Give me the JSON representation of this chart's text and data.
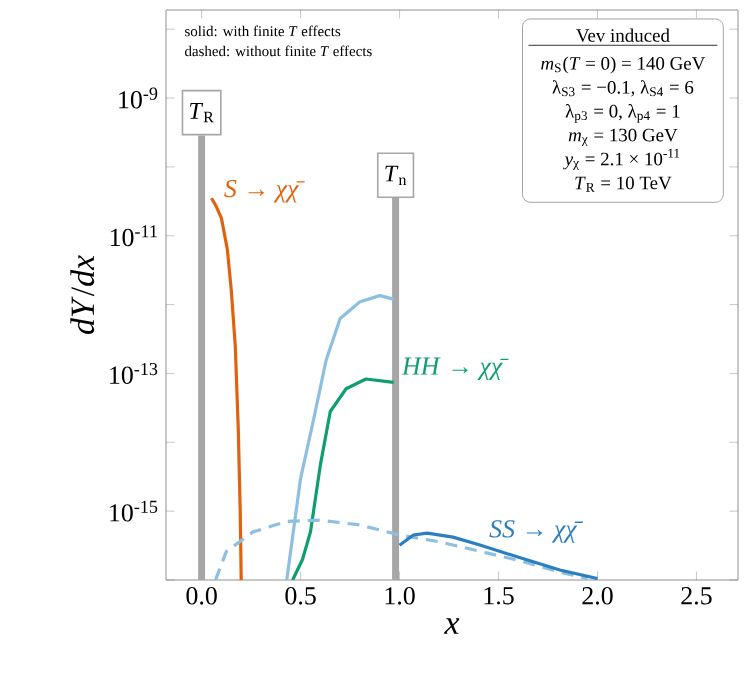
{
  "chart_data": {
    "type": "line",
    "xlabel": "*x*",
    "ylabel": "*dY*/*dx*",
    "log": "y",
    "grid": false,
    "marker": "none",
    "xlim": [
      -0.18,
      2.71
    ],
    "ylim": [
      1e-16,
      1.9e-08
    ],
    "xticks": [
      {
        "value": 0,
        "label": "0.0"
      },
      {
        "value": 0.5,
        "label": "0.5"
      },
      {
        "value": 1,
        "label": "1.0"
      },
      {
        "value": 1.5,
        "label": "1.5"
      },
      {
        "value": 2,
        "label": "2.0"
      },
      {
        "value": 2.5,
        "label": "2.5"
      }
    ],
    "yticks": [
      {
        "value": 1e-16,
        "label": null
      },
      {
        "value": 1e-15,
        "label": "10$^{-15}$"
      },
      {
        "value": 1e-14,
        "label": null
      },
      {
        "value": 1e-13,
        "label": "10$^{-13}$"
      },
      {
        "value": 1e-12,
        "label": null
      },
      {
        "value": 1e-11,
        "label": "10$^{-11}$"
      },
      {
        "value": 1e-10,
        "label": null
      },
      {
        "value": 1e-09,
        "label": "10$^{-9}$"
      },
      {
        "value": 1e-08,
        "label": null
      }
    ],
    "series": [
      {
        "name": "*S* → *χχ̄*",
        "color": "#e0620f",
        "line_style": "solid",
        "x": [
          0.05,
          0.07,
          0.1,
          0.13,
          0.15,
          0.17,
          0.185,
          0.195,
          0.2
        ],
        "values": [
          3.5e-11,
          2.8e-11,
          1.8e-11,
          6.3e-12,
          1.6e-12,
          2.5e-13,
          1.6e-14,
          1e-15,
          1e-16
        ]
      },
      {
        "color": "#8dbfe0",
        "line_style": "solid",
        "x": [
          0.43,
          0.5,
          0.56,
          0.63,
          0.7,
          0.8,
          0.9,
          0.97
        ],
        "values": [
          1e-16,
          3e-15,
          1.8e-14,
          1.6e-13,
          6.3e-13,
          1.1e-12,
          1.35e-12,
          1.2e-12
        ]
      },
      {
        "name": "*HH* → *χχ̄*",
        "color": "#0f9e6e",
        "line_style": "solid",
        "x": [
          0.46,
          0.51,
          0.55,
          0.6,
          0.65,
          0.73,
          0.83,
          0.97
        ],
        "values": [
          1e-16,
          2e-16,
          5e-16,
          4.7e-15,
          2.8e-14,
          6e-14,
          8.3e-14,
          7.4e-14
        ]
      },
      {
        "color": "#8dbfe0",
        "line_style": "dashed",
        "x": [
          0.07,
          0.125,
          0.26,
          0.43,
          0.6,
          0.8,
          1.0,
          1.2,
          1.41,
          1.61,
          1.81,
          1.95
        ],
        "values": [
          1e-16,
          2.6e-16,
          5e-16,
          7.1e-16,
          7.4e-16,
          6.3e-16,
          4.5e-16,
          3.6e-16,
          2.6e-16,
          1.9e-16,
          1.3e-16,
          1.05e-16
        ]
      },
      {
        "name": "*SS* → *χχ̄*",
        "color": "#2b7fc0",
        "line_style": "solid",
        "x": [
          1.0,
          1.07,
          1.14,
          1.27,
          1.41,
          1.61,
          1.81,
          2.0
        ],
        "values": [
          3.2e-16,
          4.5e-16,
          4.8e-16,
          4.2e-16,
          3.2e-16,
          2.1e-16,
          1.4e-16,
          1.05e-16
        ]
      }
    ],
    "ref_lines": [
      {
        "axis": "x",
        "value": 0,
        "label": "*T*$_{R}$",
        "color": "#a6a6a6"
      },
      {
        "axis": "x",
        "value": 0.98,
        "label": "*T*$_{n}$",
        "color": "#a6a6a6"
      }
    ],
    "annotations": [
      "solid: with finite *T* effects",
      "dashed: without finite *T* effects",
      "Vev induced",
      "*m*$_{S}$(*T* = 0) = 140 GeV",
      "λ$_{S3}$ = −0.1, λ$_{S4}$ = 6",
      "λ$_{p3}$ = 0, λ$_{p4}$ = 1",
      "*m*$_{χ}$ = 130 GeV",
      "*y*$_{χ}$ = 2.1 × 10$^{-11}$",
      "*T*$_{R}$ = 10 TeV"
    ]
  }
}
